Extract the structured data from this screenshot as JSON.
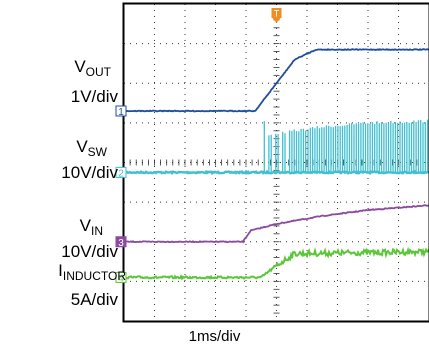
{
  "labels": {
    "vout": {
      "name": "V",
      "sub": "OUT",
      "scale": "1V/div"
    },
    "vsw": {
      "name": "V",
      "sub": "SW",
      "scale": "10V/div"
    },
    "vin": {
      "name": "V",
      "sub": "IN",
      "scale": "10V/div"
    },
    "iind": {
      "name": "I",
      "sub": "INDUCTOR",
      "scale": "5A/div"
    },
    "time": "1ms/div"
  },
  "chart_data": {
    "type": "line",
    "xlabel": "1ms/div",
    "grid": true,
    "x_divisions": 10,
    "y_divisions": 8,
    "channel_markers": [
      "1",
      "2",
      "3",
      "4"
    ],
    "trigger_marker": "T",
    "series": [
      {
        "name": "VOUT",
        "scale": "1V/div",
        "color": "#1f4e9c",
        "marker": "1",
        "points": [
          [
            0,
            2.7
          ],
          [
            4.3,
            2.7
          ],
          [
            5.6,
            1.4
          ],
          [
            6.3,
            1.15
          ],
          [
            10,
            1.15
          ]
        ]
      },
      {
        "name": "VSW",
        "scale": "10V/div",
        "color": "#41bfd0",
        "marker": "2",
        "baseline": 4.25,
        "switching_start": 4.6,
        "envelope": [
          [
            4.6,
            3.3
          ],
          [
            5.6,
            3.2
          ],
          [
            6.5,
            3.1
          ],
          [
            8,
            3.0
          ],
          [
            10,
            2.95
          ]
        ]
      },
      {
        "name": "VIN",
        "scale": "10V/div",
        "color": "#8b4a9e",
        "marker": "3",
        "points": [
          [
            0,
            6.0
          ],
          [
            3.9,
            6.0
          ],
          [
            4.15,
            5.72
          ],
          [
            5.0,
            5.55
          ],
          [
            6.5,
            5.35
          ],
          [
            8,
            5.2
          ],
          [
            10,
            5.08
          ]
        ]
      },
      {
        "name": "IINDUCTOR",
        "scale": "5A/div",
        "color": "#5cc63a",
        "marker": "4",
        "points": [
          [
            0,
            6.9
          ],
          [
            4.5,
            6.9
          ],
          [
            5.0,
            6.6
          ],
          [
            5.6,
            6.3
          ],
          [
            10,
            6.25
          ]
        ]
      }
    ]
  }
}
